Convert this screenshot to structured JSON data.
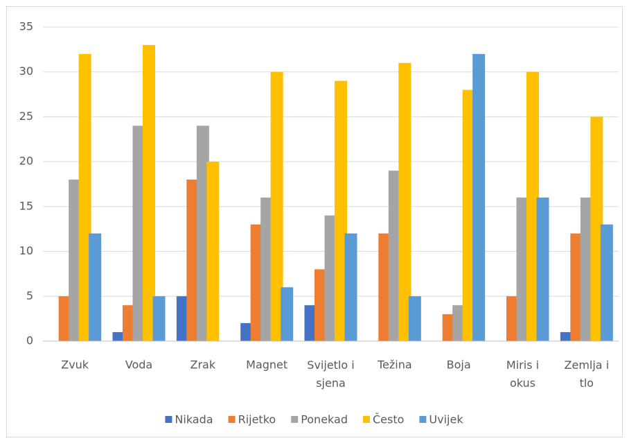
{
  "chart_data": {
    "type": "bar",
    "categories": [
      "Zvuk",
      "Voda",
      "Zrak",
      "Magnet",
      "Svijetlo i sjena",
      "Težina",
      "Boja",
      "Miris i okus",
      "Zemlja i tlo"
    ],
    "series": [
      {
        "name": "Nikada",
        "color": "#4472c4",
        "values": [
          0,
          1,
          5,
          2,
          4,
          0,
          0,
          0,
          1
        ]
      },
      {
        "name": "Rijetko",
        "color": "#ed7d31",
        "values": [
          5,
          4,
          18,
          13,
          8,
          12,
          3,
          5,
          12
        ]
      },
      {
        "name": "Ponekad",
        "color": "#a5a5a5",
        "values": [
          18,
          24,
          24,
          16,
          14,
          19,
          4,
          16,
          16
        ]
      },
      {
        "name": "Često",
        "color": "#ffc000",
        "values": [
          32,
          33,
          20,
          30,
          29,
          31,
          28,
          30,
          25
        ]
      },
      {
        "name": "Uvijek",
        "color": "#5b9bd5",
        "values": [
          12,
          5,
          0,
          6,
          12,
          5,
          32,
          16,
          13
        ]
      }
    ],
    "ylim": [
      0,
      35
    ],
    "yticks": [
      0,
      5,
      10,
      15,
      20,
      25,
      30,
      35
    ],
    "grid": true,
    "legend": "bottom"
  }
}
